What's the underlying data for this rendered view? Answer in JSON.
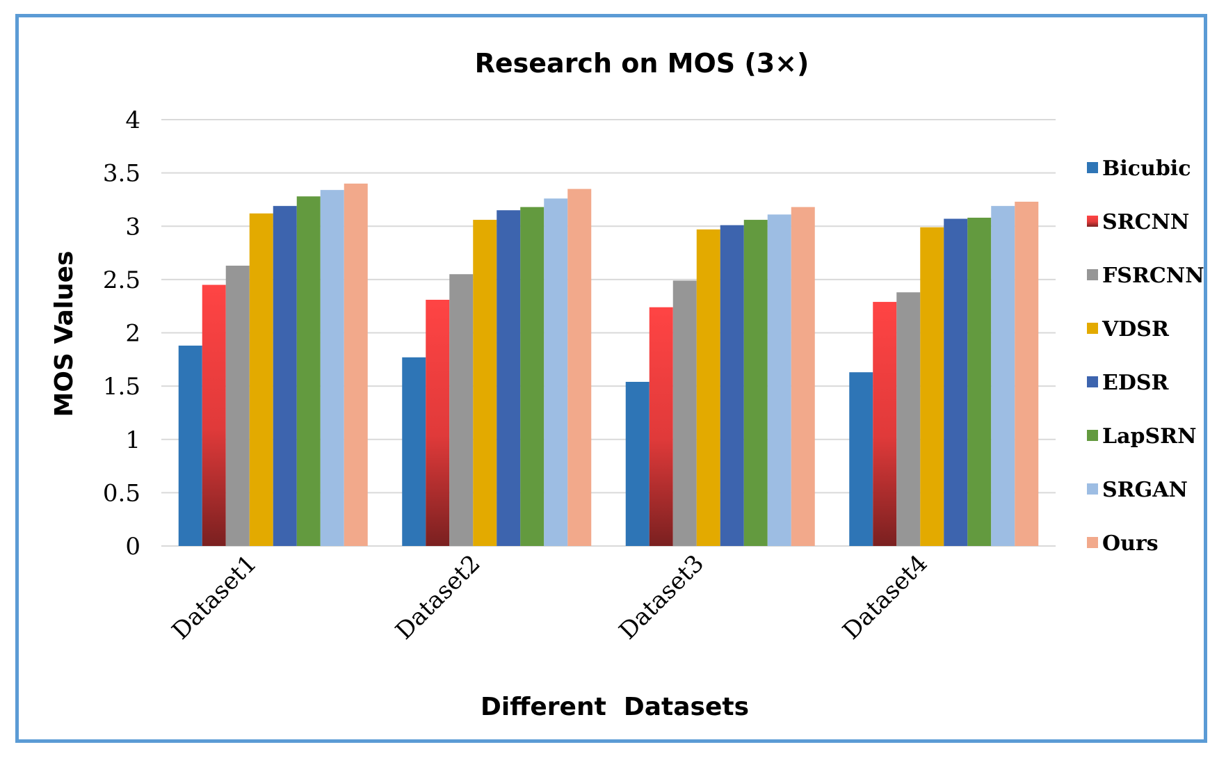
{
  "chart_data": {
    "type": "bar",
    "title": "Research on MOS (3×)",
    "xlabel": "Different  Datasets",
    "ylabel": "MOS Values",
    "ylim": [
      0,
      4
    ],
    "yticks": [
      0,
      0.5,
      1,
      1.5,
      2,
      2.5,
      3,
      3.5,
      4
    ],
    "ytick_labels": [
      "0",
      "0.5",
      "1",
      "1.5",
      "2",
      "2.5",
      "3",
      "3.5",
      "4"
    ],
    "categories": [
      "Dataset1",
      "Dataset2",
      "Dataset3",
      "Dataset4"
    ],
    "legend_position": "right",
    "grid": true,
    "series": [
      {
        "name": "Bicubic",
        "color": "#2e75b6",
        "values": [
          1.88,
          1.77,
          1.54,
          1.63
        ]
      },
      {
        "name": "SRCNN",
        "color": "#ff4040",
        "values": [
          2.45,
          2.31,
          2.24,
          2.29
        ]
      },
      {
        "name": "FSRCNN",
        "color": "#969696",
        "values": [
          2.63,
          2.55,
          2.49,
          2.38
        ]
      },
      {
        "name": "VDSR",
        "color": "#e3aa00",
        "values": [
          3.12,
          3.06,
          2.97,
          2.99
        ]
      },
      {
        "name": "EDSR",
        "color": "#3d64ae",
        "values": [
          3.19,
          3.15,
          3.01,
          3.07
        ]
      },
      {
        "name": "LapSRN",
        "color": "#639a3f",
        "values": [
          3.28,
          3.18,
          3.06,
          3.08
        ]
      },
      {
        "name": "SRGAN",
        "color": "#9dbde3",
        "values": [
          3.34,
          3.26,
          3.11,
          3.19
        ]
      },
      {
        "name": "Ours",
        "color": "#f2a98b",
        "values": [
          3.4,
          3.35,
          3.18,
          3.23
        ]
      }
    ]
  }
}
